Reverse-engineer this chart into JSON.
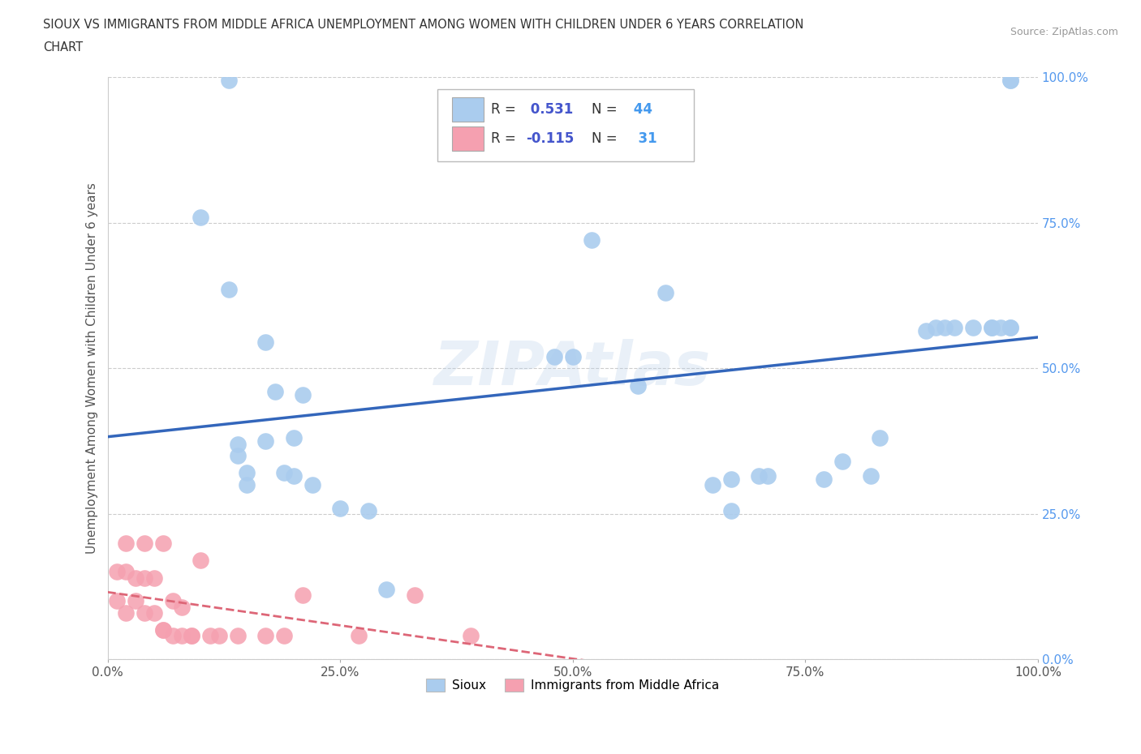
{
  "title_line1": "SIOUX VS IMMIGRANTS FROM MIDDLE AFRICA UNEMPLOYMENT AMONG WOMEN WITH CHILDREN UNDER 6 YEARS CORRELATION",
  "title_line2": "CHART",
  "source": "Source: ZipAtlas.com",
  "ylabel": "Unemployment Among Women with Children Under 6 years",
  "xlim": [
    0,
    1
  ],
  "ylim": [
    0,
    1
  ],
  "ytick_labels": [
    "0.0%",
    "25.0%",
    "50.0%",
    "75.0%",
    "100.0%"
  ],
  "ytick_values": [
    0,
    0.25,
    0.5,
    0.75,
    1.0
  ],
  "xtick_labels": [
    "0.0%",
    "25.0%",
    "50.0%",
    "75.0%",
    "100.0%"
  ],
  "xtick_values": [
    0,
    0.25,
    0.5,
    0.75,
    1.0
  ],
  "sioux_R": 0.531,
  "sioux_N": 44,
  "immigrants_R": -0.115,
  "immigrants_N": 31,
  "sioux_color": "#aaccee",
  "immigrants_color": "#f5a0b0",
  "sioux_line_color": "#3366bb",
  "immigrants_line_color": "#dd6677",
  "watermark": "ZIPAtlas",
  "sioux_x": [
    0.13,
    0.1,
    0.13,
    0.14,
    0.15,
    0.17,
    0.18,
    0.19,
    0.2,
    0.21,
    0.22,
    0.25,
    0.28,
    0.5,
    0.52,
    0.57,
    0.6,
    0.65,
    0.67,
    0.67,
    0.7,
    0.71,
    0.77,
    0.79,
    0.82,
    0.83,
    0.88,
    0.89,
    0.9,
    0.91,
    0.93,
    0.95,
    0.95,
    0.96,
    0.97,
    0.97,
    0.97,
    0.97,
    0.14,
    0.15,
    0.17,
    0.2,
    0.3,
    0.48
  ],
  "sioux_y": [
    0.995,
    0.76,
    0.635,
    0.37,
    0.32,
    0.545,
    0.46,
    0.32,
    0.315,
    0.455,
    0.3,
    0.26,
    0.255,
    0.52,
    0.72,
    0.47,
    0.63,
    0.3,
    0.31,
    0.255,
    0.315,
    0.315,
    0.31,
    0.34,
    0.315,
    0.38,
    0.565,
    0.57,
    0.57,
    0.57,
    0.57,
    0.57,
    0.57,
    0.57,
    0.57,
    0.57,
    0.995,
    0.995,
    0.35,
    0.3,
    0.375,
    0.38,
    0.12,
    0.52
  ],
  "immigrants_x": [
    0.01,
    0.01,
    0.02,
    0.02,
    0.02,
    0.03,
    0.03,
    0.04,
    0.04,
    0.04,
    0.05,
    0.05,
    0.06,
    0.06,
    0.06,
    0.07,
    0.07,
    0.08,
    0.08,
    0.09,
    0.09,
    0.1,
    0.11,
    0.12,
    0.14,
    0.17,
    0.19,
    0.21,
    0.27,
    0.33,
    0.39
  ],
  "immigrants_y": [
    0.15,
    0.1,
    0.2,
    0.15,
    0.08,
    0.14,
    0.1,
    0.08,
    0.2,
    0.14,
    0.14,
    0.08,
    0.2,
    0.05,
    0.05,
    0.04,
    0.1,
    0.04,
    0.09,
    0.04,
    0.04,
    0.17,
    0.04,
    0.04,
    0.04,
    0.04,
    0.04,
    0.11,
    0.04,
    0.11,
    0.04
  ],
  "background_color": "#ffffff",
  "grid_color": "#cccccc"
}
